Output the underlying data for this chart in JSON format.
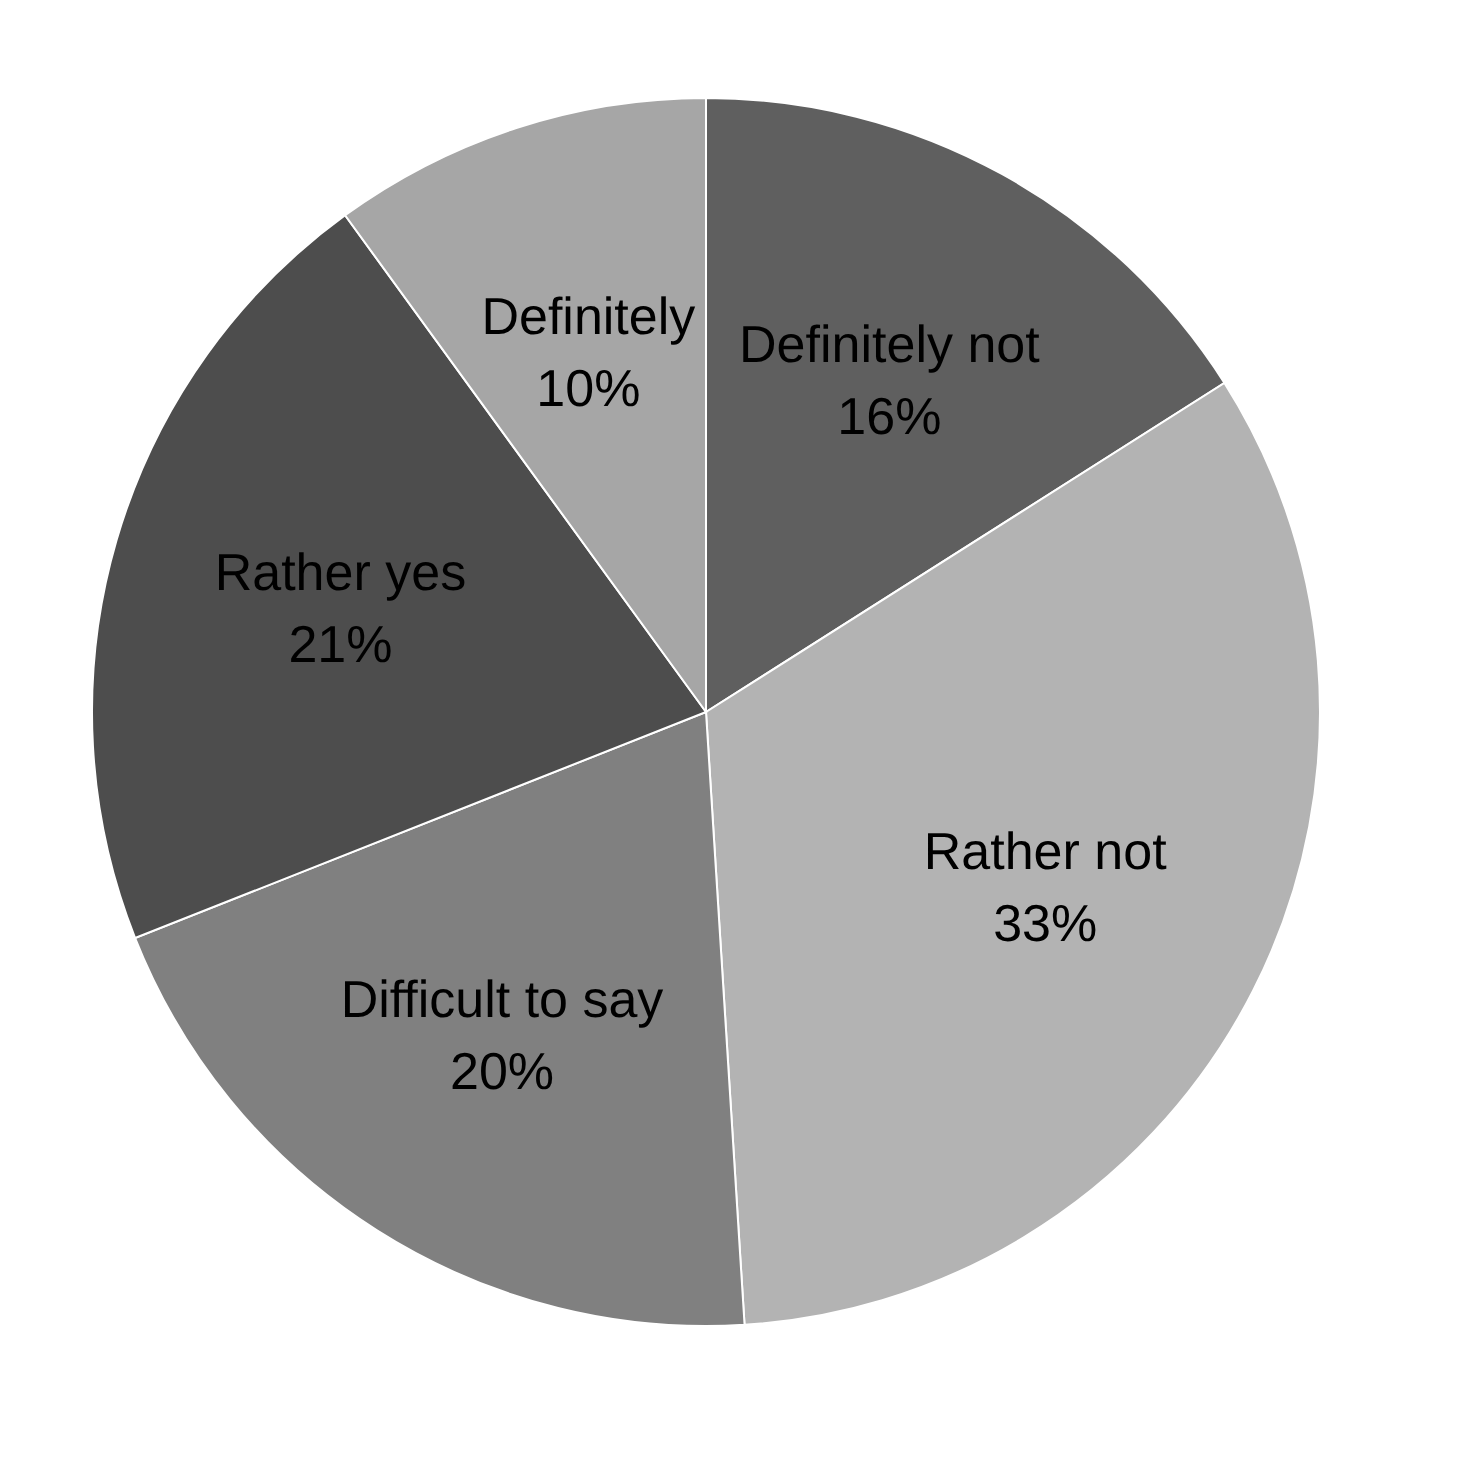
{
  "chart_data": {
    "type": "pie",
    "categories": [
      "Definitely not",
      "Rather not",
      "Difficult to say",
      "Rather yes",
      "Definitely"
    ],
    "values": [
      16,
      33,
      20,
      21,
      10
    ],
    "colors": [
      "#5f5f5f",
      "#b3b3b3",
      "#808080",
      "#4d4d4d",
      "#a6a6a6"
    ],
    "value_labels": [
      "16%",
      "33%",
      "20%",
      "21%",
      "10%"
    ]
  }
}
